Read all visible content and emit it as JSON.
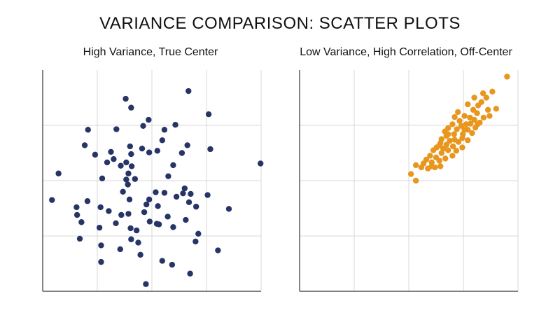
{
  "title": "VARIANCE COMPARISON: SCATTER PLOTS",
  "colors": {
    "left": "#263566",
    "right": "#e8961e",
    "grid": "#d9d9d9",
    "axis": "#333333"
  },
  "chart_data": [
    {
      "type": "scatter",
      "title": "High Variance, True Center",
      "xlim": [
        0,
        4
      ],
      "ylim": [
        0,
        4
      ],
      "grid": true,
      "series": [
        {
          "color": "#263566",
          "points": [
            [
              1.52,
              3.48
            ],
            [
              2.67,
              3.62
            ],
            [
              1.62,
              3.32
            ],
            [
              3.04,
              3.2
            ],
            [
              1.94,
              3.1
            ],
            [
              1.84,
              2.99
            ],
            [
              2.43,
              3.01
            ],
            [
              0.83,
              2.92
            ],
            [
              1.35,
              2.93
            ],
            [
              2.23,
              2.92
            ],
            [
              2.19,
              2.73
            ],
            [
              0.77,
              2.64
            ],
            [
              1.6,
              2.62
            ],
            [
              1.82,
              2.58
            ],
            [
              2.65,
              2.64
            ],
            [
              3.07,
              2.57
            ],
            [
              1.25,
              2.52
            ],
            [
              1.62,
              2.48
            ],
            [
              1.18,
              2.33
            ],
            [
              0.96,
              2.47
            ],
            [
              1.53,
              2.33
            ],
            [
              1.95,
              2.51
            ],
            [
              2.55,
              2.5
            ],
            [
              1.3,
              2.39
            ],
            [
              1.43,
              2.27
            ],
            [
              1.63,
              2.26
            ],
            [
              2.1,
              2.54
            ],
            [
              2.39,
              2.28
            ],
            [
              0.29,
              2.13
            ],
            [
              1.09,
              2.04
            ],
            [
              1.57,
              2.13
            ],
            [
              1.53,
              2.02
            ],
            [
              2.3,
              2.08
            ],
            [
              3.99,
              2.31
            ],
            [
              1.69,
              2.03
            ],
            [
              1.47,
              1.8
            ],
            [
              2.23,
              1.78
            ],
            [
              2.45,
              1.71
            ],
            [
              2.6,
              1.86
            ],
            [
              2.71,
              1.76
            ],
            [
              1.56,
              1.93
            ],
            [
              3.02,
              1.74
            ],
            [
              0.17,
              1.65
            ],
            [
              0.82,
              1.63
            ],
            [
              2.81,
              1.53
            ],
            [
              1.59,
              1.66
            ],
            [
              1.95,
              1.66
            ],
            [
              2.07,
              1.79
            ],
            [
              2.57,
              1.77
            ],
            [
              3.41,
              1.49
            ],
            [
              0.62,
              1.52
            ],
            [
              0.71,
              1.25
            ],
            [
              1.06,
              1.52
            ],
            [
              1.34,
              1.23
            ],
            [
              2.11,
              1.54
            ],
            [
              2.68,
              1.61
            ],
            [
              1.9,
              1.57
            ],
            [
              0.63,
              1.38
            ],
            [
              1.21,
              1.45
            ],
            [
              1.44,
              1.38
            ],
            [
              2.09,
              1.22
            ],
            [
              2.29,
              1.35
            ],
            [
              1.04,
              1.15
            ],
            [
              1.57,
              1.4
            ],
            [
              1.61,
              1.14
            ],
            [
              1.86,
              1.43
            ],
            [
              2.13,
              1.21
            ],
            [
              2.62,
              1.29
            ],
            [
              1.72,
              1.1
            ],
            [
              1.96,
              1.26
            ],
            [
              2.39,
              1.16
            ],
            [
              0.68,
              0.95
            ],
            [
              1.07,
              0.83
            ],
            [
              1.62,
              0.94
            ],
            [
              2.85,
              1.04
            ],
            [
              1.42,
              0.76
            ],
            [
              2.8,
              0.9
            ],
            [
              1.75,
              0.88
            ],
            [
              1.07,
              0.53
            ],
            [
              1.79,
              0.66
            ],
            [
              2.19,
              0.55
            ],
            [
              2.37,
              0.48
            ],
            [
              3.21,
              0.74
            ],
            [
              2.7,
              0.32
            ],
            [
              1.89,
              0.13
            ]
          ]
        }
      ]
    },
    {
      "type": "scatter",
      "title": "Low Variance, High Correlation, Off-Center",
      "xlim": [
        0,
        4
      ],
      "ylim": [
        0,
        4
      ],
      "grid": true,
      "series": [
        {
          "color": "#e8961e",
          "points": [
            [
              3.8,
              3.88
            ],
            [
              3.53,
              3.61
            ],
            [
              3.36,
              3.58
            ],
            [
              3.42,
              3.5
            ],
            [
              3.2,
              3.5
            ],
            [
              3.33,
              3.42
            ],
            [
              3.27,
              3.36
            ],
            [
              3.08,
              3.38
            ],
            [
              3.45,
              3.28
            ],
            [
              3.6,
              3.3
            ],
            [
              3.18,
              3.28
            ],
            [
              3.25,
              3.22
            ],
            [
              2.9,
              3.24
            ],
            [
              3.02,
              3.17
            ],
            [
              3.37,
              3.14
            ],
            [
              3.12,
              3.14
            ],
            [
              3.48,
              3.17
            ],
            [
              2.84,
              3.15
            ],
            [
              3.2,
              3.1
            ],
            [
              2.93,
              3.08
            ],
            [
              3.3,
              3.05
            ],
            [
              3.05,
              3.02
            ],
            [
              3.13,
              3.03
            ],
            [
              2.8,
              3.02
            ],
            [
              2.96,
              2.99
            ],
            [
              3.22,
              2.96
            ],
            [
              2.72,
              2.95
            ],
            [
              2.88,
              2.93
            ],
            [
              3.08,
              2.92
            ],
            [
              3.16,
              2.86
            ],
            [
              2.99,
              2.84
            ],
            [
              2.72,
              2.84
            ],
            [
              2.83,
              2.84
            ],
            [
              2.69,
              2.81
            ],
            [
              2.6,
              2.75
            ],
            [
              2.84,
              2.74
            ],
            [
              2.98,
              2.77
            ],
            [
              2.75,
              2.72
            ],
            [
              2.91,
              2.7
            ],
            [
              3.08,
              2.73
            ],
            [
              2.69,
              2.65
            ],
            [
              2.56,
              2.64
            ],
            [
              2.81,
              2.62
            ],
            [
              2.63,
              2.58
            ],
            [
              2.98,
              2.6
            ],
            [
              2.51,
              2.6
            ],
            [
              2.72,
              2.55
            ],
            [
              2.87,
              2.54
            ],
            [
              2.45,
              2.55
            ],
            [
              2.6,
              2.5
            ],
            [
              2.39,
              2.45
            ],
            [
              2.8,
              2.45
            ],
            [
              2.5,
              2.42
            ],
            [
              2.67,
              2.4
            ],
            [
              2.32,
              2.38
            ],
            [
              2.56,
              2.36
            ],
            [
              2.42,
              2.33
            ],
            [
              2.27,
              2.31
            ],
            [
              2.58,
              2.26
            ],
            [
              2.13,
              2.28
            ],
            [
              2.23,
              2.24
            ],
            [
              2.42,
              2.26
            ],
            [
              2.48,
              2.24
            ],
            [
              2.35,
              2.22
            ],
            [
              2.04,
              2.12
            ],
            [
              2.13,
              2.0
            ],
            [
              2.58,
              2.68
            ],
            [
              3.26,
              3.02
            ],
            [
              2.66,
              2.89
            ],
            [
              3.02,
              2.92
            ]
          ]
        }
      ]
    }
  ]
}
